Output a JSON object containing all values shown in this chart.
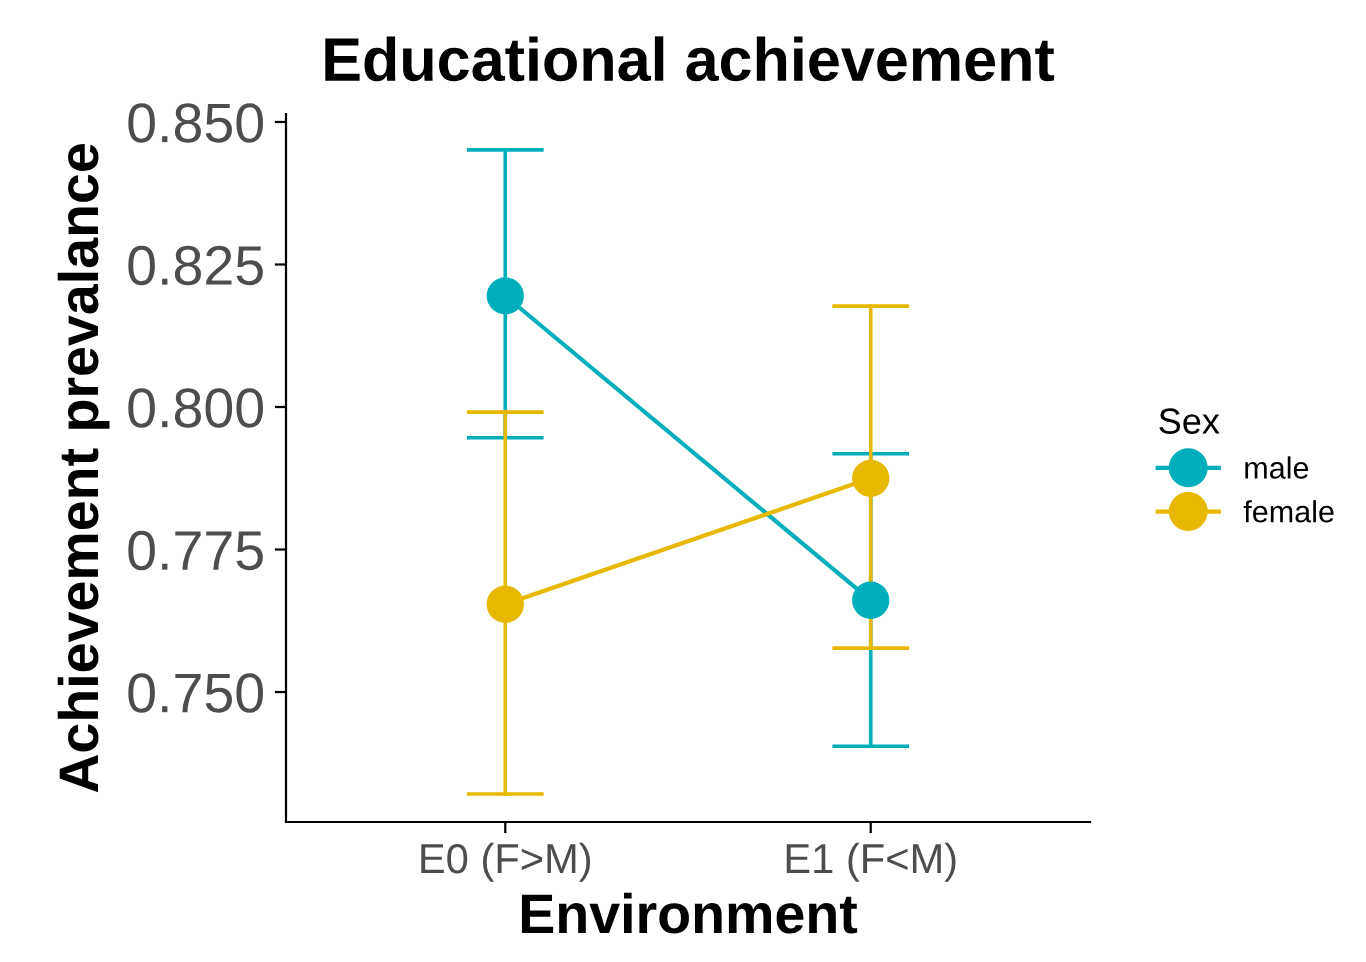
{
  "chart_data": {
    "type": "line",
    "title": "Educational achievement",
    "xlabel": "Environment",
    "ylabel": "Achievement prevalance",
    "legend_title": "Sex",
    "categories": [
      "E0 (F>M)",
      "E1 (F<M)"
    ],
    "series": [
      {
        "name": "male",
        "color": "#00afbb",
        "values": [
          0.8195,
          0.7661
        ],
        "errors": [
          [
            0.7946,
            0.8451
          ],
          [
            0.7405,
            0.7918
          ]
        ]
      },
      {
        "name": "female",
        "color": "#e7b800",
        "values": [
          0.7654,
          0.7875
        ],
        "errors": [
          [
            0.7321,
            0.7991
          ],
          [
            0.7577,
            0.8177
          ]
        ]
      }
    ],
    "ylim": [
      0.7272,
      0.8514
    ],
    "yticks": [
      {
        "value": 0.75,
        "label": "0.750"
      },
      {
        "value": 0.775,
        "label": "0.775"
      },
      {
        "value": 0.8,
        "label": "0.800"
      },
      {
        "value": 0.825,
        "label": "0.825"
      },
      {
        "value": 0.85,
        "label": "0.850"
      }
    ],
    "marker": "circle",
    "legend": "right",
    "grid": false
  }
}
